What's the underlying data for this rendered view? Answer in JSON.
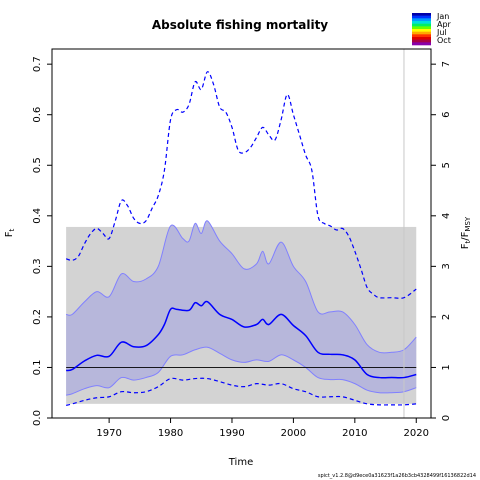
{
  "chart_data": {
    "type": "area",
    "title": "Absolute fishing mortality",
    "xlabel": "Time",
    "ylabel_left": "F",
    "ylabel_left_sub": "t",
    "ylabel_right": "F",
    "ylabel_right_sub": "t",
    "ylabel_right_tail": "/F",
    "ylabel_right_tail_sub": "MSY",
    "xlim": [
      1960.7,
      2022.4
    ],
    "ylim": [
      0.0,
      0.73
    ],
    "ylim_right": [
      0.0,
      7.3
    ],
    "x_ticks": [
      1970,
      1980,
      1990,
      2000,
      2010,
      2020
    ],
    "y_ticks": [
      0.0,
      0.1,
      0.2,
      0.3,
      0.4,
      0.5,
      0.6,
      0.7
    ],
    "y_ticks_right": [
      0,
      1,
      2,
      3,
      4,
      5,
      6,
      7
    ],
    "reference_line_y": 0.1,
    "vertical_line_x": 2018,
    "grey_box": {
      "x": [
        1963,
        2020
      ],
      "y": [
        0.028,
        0.378
      ]
    },
    "colors": {
      "median": "#0000ff",
      "ci_fill": "#b4b4dc",
      "ci_edge": "#8080ff",
      "grey_box": "#d3d3d3",
      "reference": "#000000",
      "vertical": "#c8c8c8"
    },
    "series": [
      {
        "name": "median",
        "x": [
          1963,
          1964,
          1966,
          1968,
          1970,
          1972,
          1974,
          1976,
          1978,
          1979,
          1980,
          1981,
          1983,
          1984,
          1985,
          1986,
          1988,
          1990,
          1992,
          1994,
          1995,
          1996,
          1998,
          2000,
          2002,
          2004,
          2006,
          2008,
          2010,
          2012,
          2014,
          2016,
          2018,
          2020
        ],
        "values": [
          0.094,
          0.096,
          0.113,
          0.124,
          0.122,
          0.15,
          0.141,
          0.143,
          0.165,
          0.185,
          0.215,
          0.215,
          0.213,
          0.228,
          0.222,
          0.23,
          0.205,
          0.195,
          0.18,
          0.185,
          0.195,
          0.185,
          0.205,
          0.183,
          0.163,
          0.13,
          0.126,
          0.125,
          0.115,
          0.086,
          0.08,
          0.08,
          0.08,
          0.086
        ]
      },
      {
        "name": "upper",
        "x": [
          1963,
          1964,
          1966,
          1968,
          1970,
          1972,
          1974,
          1976,
          1978,
          1980,
          1982,
          1983,
          1984,
          1985,
          1986,
          1988,
          1990,
          1992,
          1994,
          1995,
          1996,
          1998,
          2000,
          2002,
          2004,
          2006,
          2008,
          2010,
          2012,
          2014,
          2016,
          2018,
          2020
        ],
        "values": [
          0.205,
          0.205,
          0.23,
          0.25,
          0.24,
          0.285,
          0.27,
          0.275,
          0.3,
          0.38,
          0.355,
          0.35,
          0.385,
          0.365,
          0.39,
          0.35,
          0.325,
          0.295,
          0.305,
          0.33,
          0.305,
          0.348,
          0.3,
          0.27,
          0.21,
          0.21,
          0.21,
          0.185,
          0.145,
          0.13,
          0.13,
          0.135,
          0.16
        ]
      },
      {
        "name": "lower",
        "x": [
          1963,
          1964,
          1966,
          1968,
          1970,
          1972,
          1974,
          1976,
          1978,
          1980,
          1982,
          1984,
          1986,
          1988,
          1990,
          1992,
          1994,
          1996,
          1998,
          2000,
          2002,
          2004,
          2006,
          2008,
          2010,
          2012,
          2014,
          2016,
          2018,
          2020
        ],
        "values": [
          0.045,
          0.048,
          0.058,
          0.064,
          0.06,
          0.08,
          0.075,
          0.08,
          0.09,
          0.122,
          0.125,
          0.135,
          0.14,
          0.128,
          0.115,
          0.11,
          0.115,
          0.112,
          0.125,
          0.115,
          0.1,
          0.08,
          0.076,
          0.076,
          0.068,
          0.055,
          0.05,
          0.05,
          0.052,
          0.06
        ]
      },
      {
        "name": "upper_dashed",
        "x": [
          1963,
          1964,
          1965,
          1966,
          1967,
          1968,
          1969,
          1970,
          1971,
          1972,
          1973,
          1974,
          1975,
          1976,
          1977,
          1978,
          1979,
          1980,
          1981,
          1982,
          1983,
          1984,
          1985,
          1986,
          1987,
          1988,
          1989,
          1990,
          1991,
          1992,
          1993,
          1994,
          1995,
          1996,
          1997,
          1998,
          1999,
          2000,
          2001,
          2002,
          2003,
          2004,
          2005,
          2006,
          2007,
          2008,
          2009,
          2010,
          2011,
          2012,
          2013,
          2014,
          2016,
          2018,
          2020
        ],
        "values": [
          0.315,
          0.312,
          0.32,
          0.345,
          0.365,
          0.375,
          0.365,
          0.355,
          0.39,
          0.43,
          0.42,
          0.395,
          0.385,
          0.39,
          0.415,
          0.44,
          0.49,
          0.59,
          0.61,
          0.605,
          0.62,
          0.665,
          0.65,
          0.685,
          0.66,
          0.615,
          0.605,
          0.575,
          0.53,
          0.525,
          0.535,
          0.555,
          0.575,
          0.56,
          0.55,
          0.59,
          0.64,
          0.6,
          0.56,
          0.52,
          0.49,
          0.4,
          0.385,
          0.38,
          0.372,
          0.375,
          0.36,
          0.33,
          0.295,
          0.258,
          0.245,
          0.238,
          0.238,
          0.238,
          0.255
        ]
      },
      {
        "name": "lower_dashed",
        "x": [
          1963,
          1964,
          1966,
          1968,
          1970,
          1972,
          1974,
          1976,
          1978,
          1980,
          1982,
          1984,
          1986,
          1988,
          1990,
          1992,
          1994,
          1996,
          1998,
          2000,
          2002,
          2004,
          2006,
          2008,
          2010,
          2012,
          2014,
          2016,
          2018,
          2020
        ],
        "values": [
          0.025,
          0.028,
          0.035,
          0.04,
          0.042,
          0.052,
          0.05,
          0.052,
          0.062,
          0.078,
          0.075,
          0.078,
          0.078,
          0.072,
          0.065,
          0.062,
          0.068,
          0.065,
          0.068,
          0.058,
          0.052,
          0.042,
          0.042,
          0.042,
          0.035,
          0.028,
          0.026,
          0.026,
          0.026,
          0.028
        ]
      }
    ],
    "legend": {
      "position": "top-right",
      "labels": [
        "Jan",
        "Apr",
        "Jul",
        "Oct"
      ],
      "colors": [
        "#0000aa",
        "#0033ff",
        "#0099ff",
        "#00dddd",
        "#00ee66",
        "#66ff00",
        "#ffff00",
        "#ffaa00",
        "#ff3300",
        "#dd0000",
        "#aa0044",
        "#8800aa"
      ]
    },
    "footnote": "spict_v1.2.8@d9ece0a31623f1a26b3cb4328499f16136822d14"
  }
}
